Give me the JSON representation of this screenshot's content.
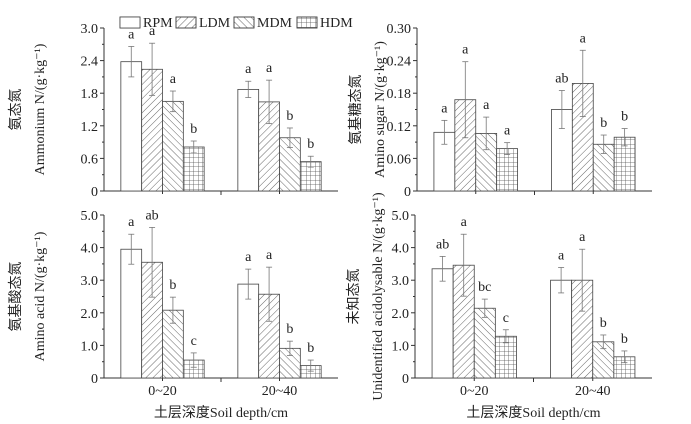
{
  "legend": {
    "placement": "top",
    "entries": [
      {
        "name": "RPM",
        "pattern": "empty"
      },
      {
        "name": "LDM",
        "pattern": "forward-hatch"
      },
      {
        "name": "MDM",
        "pattern": "back-hatch"
      },
      {
        "name": "HDM",
        "pattern": "grid"
      }
    ]
  },
  "colors": {
    "axis": "#333333",
    "bar_stroke": "#444444",
    "hatch": "#555555",
    "error_bar": "#777777"
  },
  "chart_data": [
    {
      "type": "bar",
      "ylabel_cn": "氨态氮",
      "ylabel": "Ammonium N/(g·kg⁻¹)",
      "xlabel": "",
      "categories": [
        "0~20",
        "20~40"
      ],
      "show_xticklabels": false,
      "ylim": [
        0,
        3.0
      ],
      "yticks": [
        "0",
        "0.6",
        "1.2",
        "1.8",
        "2.4",
        "3.0"
      ],
      "series": [
        {
          "name": "RPM",
          "values": [
            2.38,
            1.87
          ],
          "errors": [
            0.28,
            0.15
          ],
          "letters": [
            "a",
            "a"
          ]
        },
        {
          "name": "LDM",
          "values": [
            2.24,
            1.64
          ],
          "errors": [
            0.48,
            0.4
          ],
          "letters": [
            "a",
            "a"
          ]
        },
        {
          "name": "MDM",
          "values": [
            1.65,
            0.98
          ],
          "errors": [
            0.19,
            0.18
          ],
          "letters": [
            "a",
            "b"
          ]
        },
        {
          "name": "HDM",
          "values": [
            0.81,
            0.54
          ],
          "errors": [
            0.11,
            0.1
          ],
          "letters": [
            "b",
            "b"
          ]
        }
      ]
    },
    {
      "type": "bar",
      "ylabel_cn": "氨基糖态氮",
      "ylabel": "Amino sugar N/(g·kg⁻¹)",
      "xlabel": "",
      "categories": [
        "0~20",
        "20~40"
      ],
      "show_xticklabels": false,
      "ylim": [
        0,
        0.3
      ],
      "yticks": [
        "0",
        "0.06",
        "0.12",
        "0.18",
        "0.24",
        "0.30"
      ],
      "series": [
        {
          "name": "RPM",
          "values": [
            0.108,
            0.15
          ],
          "errors": [
            0.022,
            0.035
          ],
          "letters": [
            "a",
            "ab"
          ]
        },
        {
          "name": "LDM",
          "values": [
            0.168,
            0.198
          ],
          "errors": [
            0.07,
            0.061
          ],
          "letters": [
            "a",
            "a"
          ]
        },
        {
          "name": "MDM",
          "values": [
            0.106,
            0.086
          ],
          "errors": [
            0.03,
            0.017
          ],
          "letters": [
            "a",
            "b"
          ]
        },
        {
          "name": "HDM",
          "values": [
            0.078,
            0.099
          ],
          "errors": [
            0.011,
            0.016
          ],
          "letters": [
            "a",
            "b"
          ]
        }
      ]
    },
    {
      "type": "bar",
      "ylabel_cn": "氨基酸态氮",
      "ylabel": "Amino acid N/(g·kg⁻¹)",
      "xlabel": "土层深度Soil depth/cm",
      "categories": [
        "0~20",
        "20~40"
      ],
      "show_xticklabels": true,
      "ylim": [
        0,
        5.0
      ],
      "yticks": [
        "0",
        "1.0",
        "2.0",
        "3.0",
        "4.0",
        "5.0"
      ],
      "series": [
        {
          "name": "RPM",
          "values": [
            3.95,
            2.88
          ],
          "errors": [
            0.46,
            0.46
          ],
          "letters": [
            "a",
            "a"
          ]
        },
        {
          "name": "LDM",
          "values": [
            3.55,
            2.57
          ],
          "errors": [
            1.07,
            0.83
          ],
          "letters": [
            "ab",
            "a"
          ]
        },
        {
          "name": "MDM",
          "values": [
            2.08,
            0.91
          ],
          "errors": [
            0.4,
            0.22
          ],
          "letters": [
            "b",
            "b"
          ]
        },
        {
          "name": "HDM",
          "values": [
            0.55,
            0.38
          ],
          "errors": [
            0.22,
            0.17
          ],
          "letters": [
            "c",
            "b"
          ]
        }
      ]
    },
    {
      "type": "bar",
      "ylabel_cn": "未知态氮",
      "ylabel": "Unidentified acidolysable N/(g·kg⁻¹)",
      "xlabel": "土层深度Soil depth/cm",
      "categories": [
        "0~20",
        "20~40"
      ],
      "show_xticklabels": true,
      "ylim": [
        0,
        5.0
      ],
      "yticks": [
        "0",
        "1.0",
        "2.0",
        "3.0",
        "4.0",
        "5.0"
      ],
      "series": [
        {
          "name": "RPM",
          "values": [
            3.35,
            3.0
          ],
          "errors": [
            0.38,
            0.39
          ],
          "letters": [
            "ab",
            "a"
          ]
        },
        {
          "name": "LDM",
          "values": [
            3.46,
            3.0
          ],
          "errors": [
            0.95,
            0.95
          ],
          "letters": [
            "a",
            "a"
          ]
        },
        {
          "name": "MDM",
          "values": [
            2.14,
            1.11
          ],
          "errors": [
            0.28,
            0.21
          ],
          "letters": [
            "bc",
            "b"
          ]
        },
        {
          "name": "HDM",
          "values": [
            1.28,
            0.65
          ],
          "errors": [
            0.2,
            0.18
          ],
          "letters": [
            "c",
            "b"
          ]
        }
      ]
    }
  ]
}
